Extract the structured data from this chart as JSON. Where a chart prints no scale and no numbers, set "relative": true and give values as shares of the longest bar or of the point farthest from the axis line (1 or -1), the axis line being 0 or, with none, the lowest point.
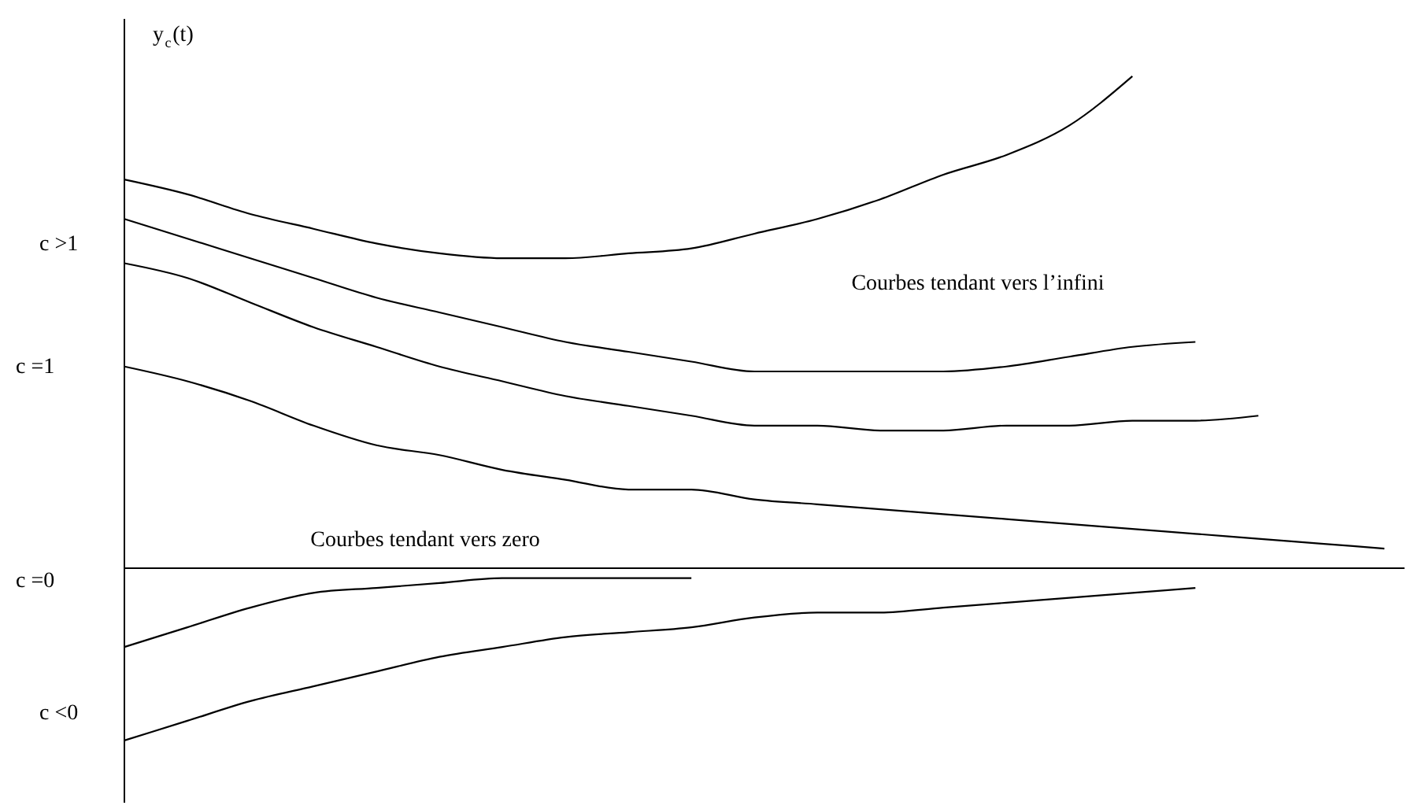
{
  "chart_data": {
    "type": "line",
    "relative": true,
    "ylabel": "y$_{c}$(t)",
    "legend": false,
    "marker": "none",
    "line_style": "solid",
    "categories": [
      null,
      null,
      null,
      null,
      null,
      null,
      null,
      null,
      null,
      null,
      null,
      null,
      null,
      null,
      null,
      null,
      null,
      null,
      null,
      null,
      null
    ],
    "series": [
      {
        "color": "#000000",
        "values": [
          0.79,
          0.76,
          0.72,
          0.69,
          0.66,
          0.64,
          0.63,
          0.63,
          0.64,
          0.65,
          0.68,
          0.71,
          0.75,
          0.8,
          0.84,
          0.9,
          1.0,
          null,
          null,
          null,
          null
        ]
      },
      {
        "color": "#000000",
        "values": [
          0.71,
          0.67,
          0.63,
          0.59,
          0.55,
          0.52,
          0.49,
          0.46,
          0.44,
          0.42,
          0.4,
          0.4,
          0.4,
          0.4,
          0.41,
          0.43,
          0.45,
          0.46,
          null,
          null,
          null
        ]
      },
      {
        "color": "#000000",
        "values": [
          0.62,
          0.59,
          0.54,
          0.49,
          0.45,
          0.41,
          0.38,
          0.35,
          0.33,
          0.31,
          0.29,
          0.29,
          0.28,
          0.28,
          0.29,
          0.29,
          0.3,
          0.3,
          0.31,
          null,
          null
        ]
      },
      {
        "color": "#000000",
        "values": [
          0.41,
          0.38,
          0.34,
          0.29,
          0.25,
          0.23,
          0.2,
          0.18,
          0.16,
          0.16,
          0.14,
          0.13,
          0.12,
          0.11,
          0.1,
          0.09,
          0.08,
          0.07,
          0.06,
          0.05,
          0.04
        ]
      },
      {
        "color": "#000000",
        "values": [
          -0.16,
          -0.12,
          -0.08,
          -0.05,
          -0.04,
          -0.03,
          -0.02,
          -0.02,
          -0.02,
          -0.02,
          null,
          null,
          null,
          null,
          null,
          null,
          null,
          null,
          null,
          null,
          null
        ]
      },
      {
        "color": "#000000",
        "values": [
          -0.35,
          -0.31,
          -0.27,
          -0.24,
          -0.21,
          -0.18,
          -0.16,
          -0.14,
          -0.13,
          -0.12,
          -0.1,
          -0.09,
          -0.09,
          -0.08,
          -0.07,
          -0.06,
          -0.05,
          -0.04,
          null,
          null,
          null
        ]
      }
    ],
    "annotations": [
      "c >1",
      "c =1",
      "c =0",
      "c <0",
      "Courbes tendant vers l’infini",
      "Courbes tendant vers zero"
    ]
  }
}
